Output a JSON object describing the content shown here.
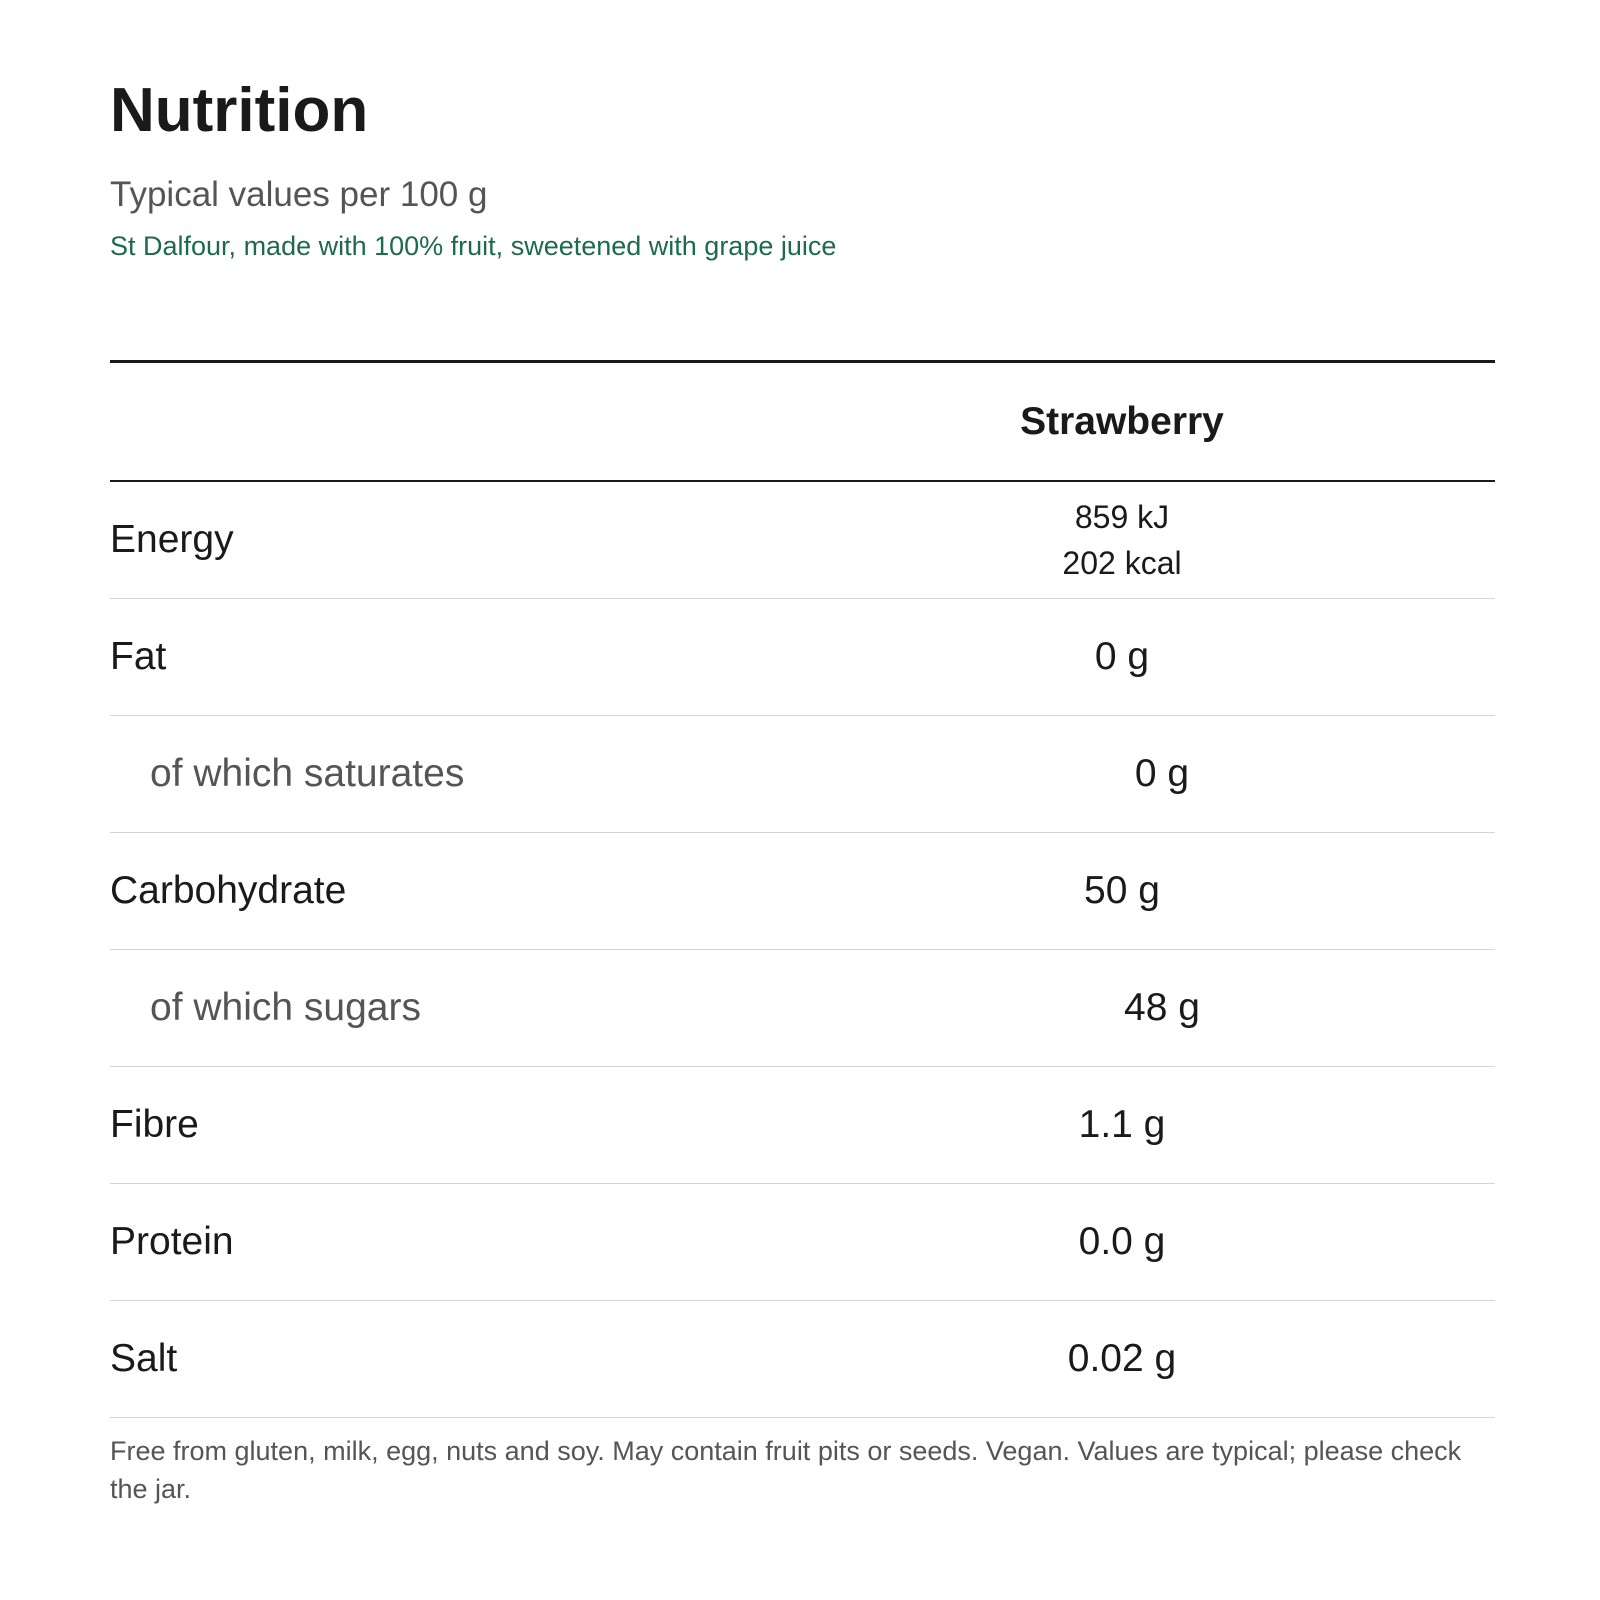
{
  "header": {
    "title": "Nutrition",
    "subtitle": "Typical values per 100 g",
    "note": "St Dalfour, made with 100% fruit, sweetened with grape juice"
  },
  "table": {
    "column_header": "Strawberry",
    "rows": [
      {
        "label": "Energy",
        "values": [
          "859 kJ",
          "202 kcal"
        ],
        "indent": false
      },
      {
        "label": "Fat",
        "values": [
          "0 g"
        ],
        "indent": false
      },
      {
        "label": "of which saturates",
        "values": [
          "0 g"
        ],
        "indent": true
      },
      {
        "label": "Carbohydrate",
        "values": [
          "50 g"
        ],
        "indent": false
      },
      {
        "label": "of which sugars",
        "values": [
          "48 g"
        ],
        "indent": true
      },
      {
        "label": "Fibre",
        "values": [
          "1.1 g"
        ],
        "indent": false
      },
      {
        "label": "Protein",
        "values": [
          "0.0 g"
        ],
        "indent": false
      },
      {
        "label": "Salt",
        "values": [
          "0.02 g"
        ],
        "indent": false
      }
    ]
  },
  "footnote": "Free from gluten, milk, egg, nuts and soy. May contain fruit pits or seeds. Vegan. Values are typical; please check the jar."
}
